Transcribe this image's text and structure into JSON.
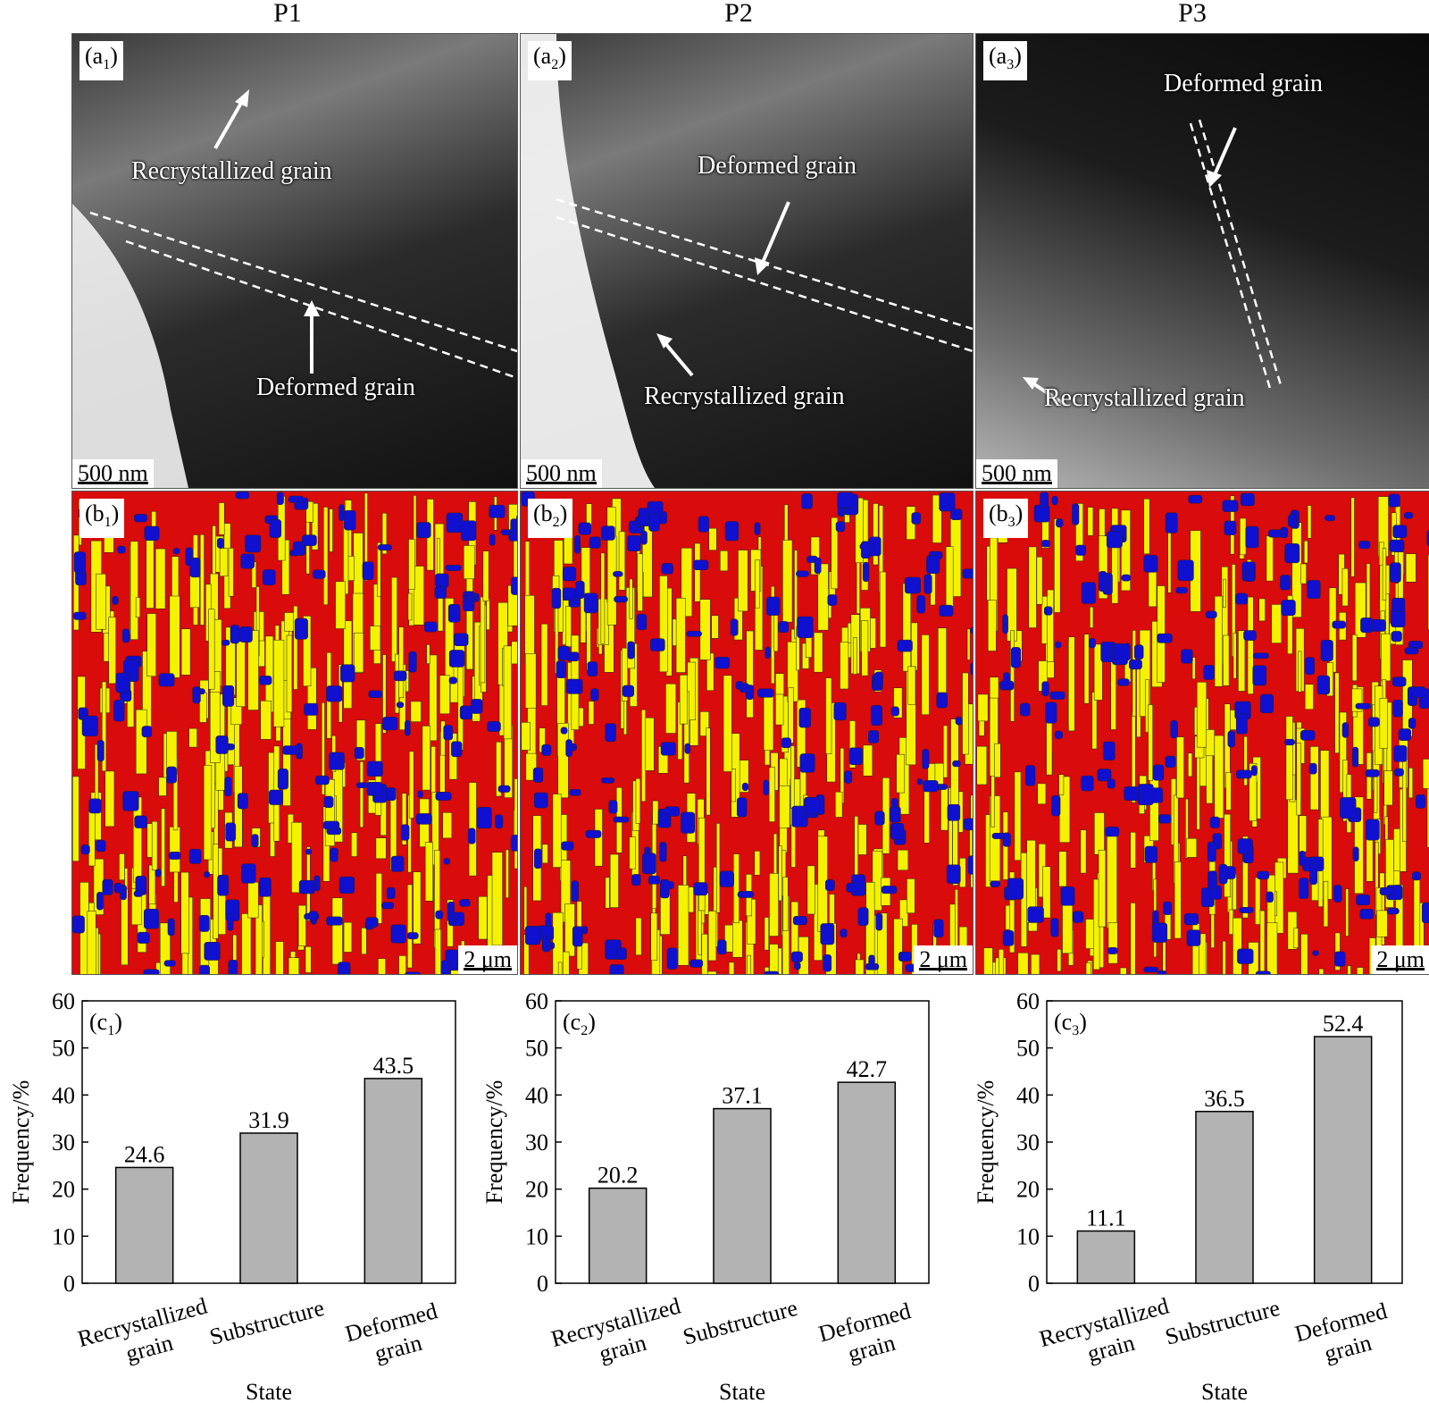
{
  "columns": [
    "P1",
    "P2",
    "P3"
  ],
  "tem_panels": [
    {
      "label_letter": "a",
      "label_sub": "1",
      "scale": "500 nm",
      "rex": "Recrystallized grain",
      "def": "Deformed grain"
    },
    {
      "label_letter": "a",
      "label_sub": "2",
      "scale": "500 nm",
      "rex": "Recrystallized grain",
      "def": "Deformed grain"
    },
    {
      "label_letter": "a",
      "label_sub": "3",
      "scale": "500 nm",
      "rex": "Recrystallized grain",
      "def": "Deformed grain"
    }
  ],
  "ebsd_panels": [
    {
      "label_letter": "b",
      "label_sub": "1",
      "scale": "2 μm"
    },
    {
      "label_letter": "b",
      "label_sub": "2",
      "scale": "2 μm"
    },
    {
      "label_letter": "b",
      "label_sub": "3",
      "scale": "2 μm"
    }
  ],
  "ebsd_colors": {
    "deformed": "#d90b0b",
    "substructure": "#f5f200",
    "recrystallized": "#1010d0"
  },
  "chart_data": [
    {
      "type": "bar",
      "label_letter": "c",
      "label_sub": "1",
      "xlabel": "State",
      "ylabel": "Frequency/%",
      "ylim": [
        0,
        60
      ],
      "yticks": [
        0,
        10,
        20,
        30,
        40,
        50,
        60
      ],
      "categories": [
        [
          "Recrystallized",
          "grain"
        ],
        [
          "Substructure"
        ],
        [
          "Deformed",
          "grain"
        ]
      ],
      "values": [
        24.6,
        31.9,
        43.5
      ],
      "value_labels": [
        "24.6",
        "31.9",
        "43.5"
      ],
      "bar_color": "#b3b3b3"
    },
    {
      "type": "bar",
      "label_letter": "c",
      "label_sub": "2",
      "xlabel": "State",
      "ylabel": "Frequency/%",
      "ylim": [
        0,
        60
      ],
      "yticks": [
        0,
        10,
        20,
        30,
        40,
        50,
        60
      ],
      "categories": [
        [
          "Recrystallized",
          "grain"
        ],
        [
          "Substructure"
        ],
        [
          "Deformed",
          "grain"
        ]
      ],
      "values": [
        20.2,
        37.1,
        42.7
      ],
      "value_labels": [
        "20.2",
        "37.1",
        "42.7"
      ],
      "bar_color": "#b3b3b3"
    },
    {
      "type": "bar",
      "label_letter": "c",
      "label_sub": "3",
      "xlabel": "State",
      "ylabel": "Frequency/%",
      "ylim": [
        0,
        60
      ],
      "yticks": [
        0,
        10,
        20,
        30,
        40,
        50,
        60
      ],
      "categories": [
        [
          "Recrystallized",
          "grain"
        ],
        [
          "Substructure"
        ],
        [
          "Deformed",
          "grain"
        ]
      ],
      "values": [
        11.1,
        36.5,
        52.4
      ],
      "value_labels": [
        "11.1",
        "36.5",
        "52.4"
      ],
      "bar_color": "#b3b3b3"
    }
  ]
}
